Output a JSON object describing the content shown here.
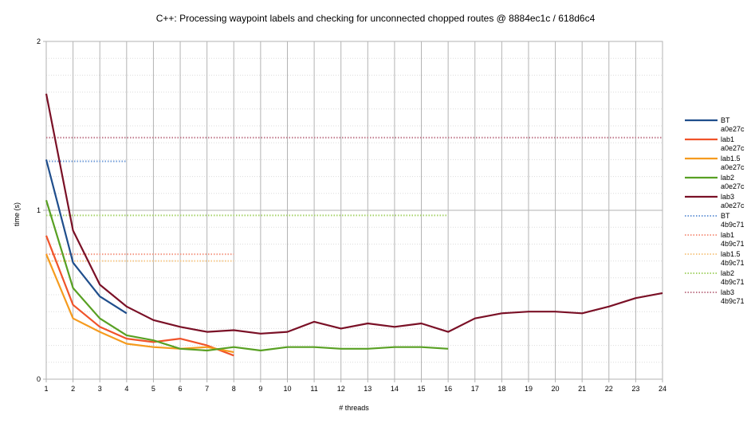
{
  "chart_data": {
    "type": "line",
    "title": "C++: Processing waypoint labels and checking for unconnected chopped routes @ 8884ec1c / 618d6c4",
    "xlabel": "# threads",
    "ylabel": "time (s)",
    "xlim": [
      1,
      24
    ],
    "ylim": [
      0,
      2
    ],
    "x_ticks": [
      1,
      2,
      3,
      4,
      5,
      6,
      7,
      8,
      9,
      10,
      11,
      12,
      13,
      14,
      15,
      16,
      17,
      18,
      19,
      20,
      21,
      22,
      23,
      24
    ],
    "y_ticks": [
      0,
      1,
      2
    ],
    "grid": "major horizontal at every 1 s, minor dotted horizontal at every 0.1 s, vertical at every thread count",
    "legend_position": "right",
    "series": [
      {
        "name": "BT",
        "name2": "a0e27c",
        "color": "#1f4e8c",
        "style": "solid",
        "x": [
          1,
          2,
          3,
          4
        ],
        "y": [
          1.3,
          0.69,
          0.49,
          0.39
        ]
      },
      {
        "name": "lab1",
        "name2": "a0e27c",
        "color": "#f0532a",
        "style": "solid",
        "x": [
          1,
          2,
          3,
          4,
          5,
          6,
          7,
          8
        ],
        "y": [
          0.85,
          0.44,
          0.31,
          0.24,
          0.22,
          0.24,
          0.2,
          0.14
        ]
      },
      {
        "name": "lab1.5",
        "name2": "a0e27c",
        "color": "#f59b1e",
        "style": "solid",
        "x": [
          1,
          2,
          3,
          4,
          5,
          6,
          7,
          8
        ],
        "y": [
          0.74,
          0.36,
          0.28,
          0.21,
          0.19,
          0.18,
          0.19,
          0.16
        ]
      },
      {
        "name": "lab2",
        "name2": "a0e27c",
        "color": "#58a023",
        "style": "solid",
        "x": [
          1,
          2,
          3,
          4,
          5,
          6,
          7,
          8,
          9,
          10,
          11,
          12,
          13,
          14,
          15,
          16
        ],
        "y": [
          1.06,
          0.54,
          0.36,
          0.26,
          0.23,
          0.18,
          0.17,
          0.19,
          0.17,
          0.19,
          0.19,
          0.18,
          0.18,
          0.19,
          0.19,
          0.18
        ]
      },
      {
        "name": "lab3",
        "name2": "a0e27c",
        "color": "#7a1026",
        "style": "solid",
        "x": [
          1,
          2,
          3,
          4,
          5,
          6,
          7,
          8,
          9,
          10,
          11,
          12,
          13,
          14,
          15,
          16,
          17,
          18,
          19,
          20,
          21,
          22,
          23,
          24
        ],
        "y": [
          1.69,
          0.88,
          0.56,
          0.43,
          0.35,
          0.31,
          0.28,
          0.29,
          0.27,
          0.28,
          0.34,
          0.3,
          0.33,
          0.31,
          0.33,
          0.28,
          0.36,
          0.39,
          0.4,
          0.4,
          0.39,
          0.43,
          0.48,
          0.51
        ]
      },
      {
        "name": "BT",
        "name2": "4b9c71",
        "color": "#6f9bd8",
        "style": "dotted",
        "x": [
          1,
          4
        ],
        "y": [
          1.29,
          1.29
        ]
      },
      {
        "name": "lab1",
        "name2": "4b9c71",
        "color": "#f59a86",
        "style": "dotted",
        "x": [
          1,
          8
        ],
        "y": [
          0.74,
          0.74
        ]
      },
      {
        "name": "lab1.5",
        "name2": "4b9c71",
        "color": "#f7c989",
        "style": "dotted",
        "x": [
          1,
          8
        ],
        "y": [
          0.7,
          0.7
        ]
      },
      {
        "name": "lab2",
        "name2": "4b9c71",
        "color": "#a6d36a",
        "style": "dotted",
        "x": [
          1,
          16
        ],
        "y": [
          0.97,
          0.97
        ]
      },
      {
        "name": "lab3",
        "name2": "4b9c71",
        "color": "#c07a8c",
        "style": "dotted",
        "x": [
          1,
          24
        ],
        "y": [
          1.43,
          1.43
        ]
      }
    ]
  }
}
